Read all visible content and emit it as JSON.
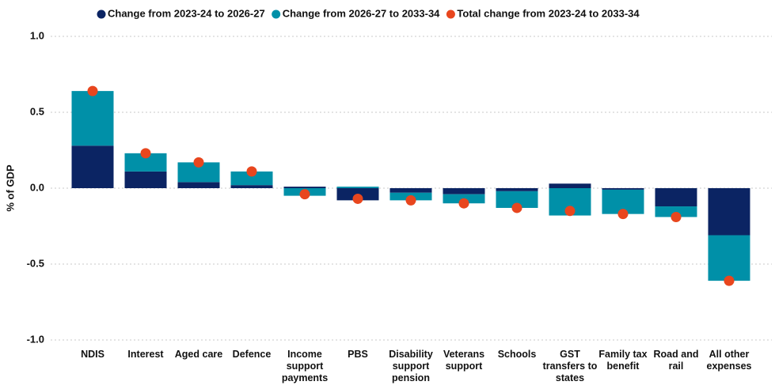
{
  "chart_data": {
    "type": "bar",
    "stacked": true,
    "y_label": "% of GDP",
    "categories": [
      "NDIS",
      "Interest",
      "Aged care",
      "Defence",
      "Income support payments",
      "PBS",
      "Disability support pension",
      "Veterans support",
      "Schools",
      "GST transfers to states",
      "Family tax benefit",
      "Road and rail",
      "All other expenses"
    ],
    "series": [
      {
        "name": "Change from 2023-24 to 2026-27",
        "color": "#0b2463",
        "values": [
          0.28,
          0.11,
          0.04,
          0.02,
          0.01,
          -0.08,
          -0.03,
          -0.04,
          -0.02,
          0.03,
          -0.01,
          -0.12,
          -0.31
        ]
      },
      {
        "name": "Change from 2026-27 to 2033-34",
        "color": "#0090a8",
        "values": [
          0.36,
          0.12,
          0.13,
          0.09,
          -0.05,
          0.01,
          -0.05,
          -0.06,
          -0.11,
          -0.18,
          -0.16,
          -0.07,
          -0.3
        ]
      },
      {
        "name": "Total change from 2023-24 to 2033-34",
        "color": "#e8461e",
        "type": "dot",
        "values": [
          0.64,
          0.23,
          0.17,
          0.11,
          -0.04,
          -0.07,
          -0.08,
          -0.1,
          -0.13,
          -0.15,
          -0.17,
          -0.19,
          -0.61
        ]
      }
    ],
    "ylim": [
      -1.0,
      1.0
    ],
    "yticks": [
      {
        "value": -1.0,
        "label": "-1.0"
      },
      -0.5,
      {
        "value": 0,
        "label": "0.0"
      },
      0.5,
      {
        "value": 1.0,
        "label": "1.0"
      }
    ],
    "grid": true,
    "legend": "top"
  }
}
